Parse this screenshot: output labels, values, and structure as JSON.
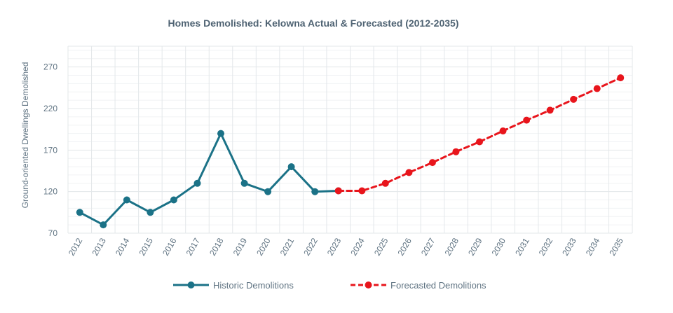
{
  "chart_data": {
    "type": "line",
    "title": "Homes Demolished: Kelowna Actual & Forecasted (2012-2035)",
    "xlabel": "",
    "ylabel": "Ground-oriented Dwellings Demolished",
    "ylim": [
      70,
      295
    ],
    "yticks": [
      70,
      120,
      170,
      220,
      270
    ],
    "grid": true,
    "legend_position": "bottom",
    "categories": [
      "2012",
      "2013",
      "2014",
      "2015",
      "2016",
      "2017",
      "2018",
      "2019",
      "2020",
      "2021",
      "2022",
      "2023",
      "2024",
      "2025",
      "2026",
      "2027",
      "2028",
      "2029",
      "2030",
      "2031",
      "2032",
      "2033",
      "2034",
      "2035"
    ],
    "series": [
      {
        "name": "Historic Demolitions",
        "color": "#1b7287",
        "style": "solid",
        "x": [
          "2012",
          "2013",
          "2014",
          "2015",
          "2016",
          "2017",
          "2018",
          "2019",
          "2020",
          "2021",
          "2022",
          "2023"
        ],
        "values": [
          95,
          80,
          110,
          95,
          110,
          130,
          190,
          130,
          120,
          150,
          120,
          121
        ]
      },
      {
        "name": "Forecasted Demolitions",
        "color": "#e8151c",
        "style": "dashed",
        "x": [
          "2023",
          "2024",
          "2025",
          "2026",
          "2027",
          "2028",
          "2029",
          "2030",
          "2031",
          "2032",
          "2033",
          "2034",
          "2035"
        ],
        "values": [
          121,
          121,
          130,
          143,
          155,
          168,
          180,
          193,
          206,
          218,
          231,
          244,
          257
        ]
      }
    ]
  }
}
